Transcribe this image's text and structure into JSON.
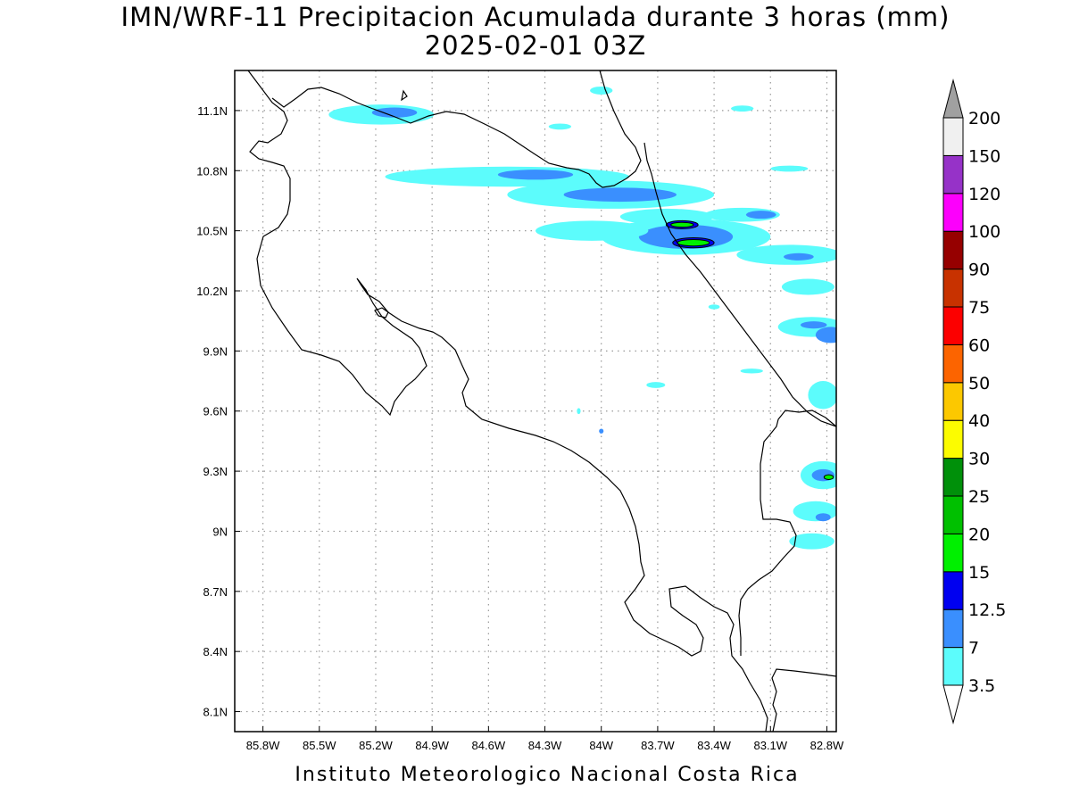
{
  "title": {
    "line1": "IMN/WRF-11 Precipitacion Acumulada durante 3 horas (mm)",
    "line2": "2025-02-01 03Z"
  },
  "footer": "Instituto Meteorologico Nacional Costa Rica",
  "map": {
    "lon_range": [
      -85.95,
      -82.75
    ],
    "lat_range": [
      8.0,
      11.3
    ],
    "lat_ticks": [
      {
        "value": 11.1,
        "label": "11.1N"
      },
      {
        "value": 10.8,
        "label": "10.8N"
      },
      {
        "value": 10.5,
        "label": "10.5N"
      },
      {
        "value": 10.2,
        "label": "10.2N"
      },
      {
        "value": 9.9,
        "label": "9.9N"
      },
      {
        "value": 9.6,
        "label": "9.6N"
      },
      {
        "value": 9.3,
        "label": "9.3N"
      },
      {
        "value": 9.0,
        "label": "9N"
      },
      {
        "value": 8.7,
        "label": "8.7N"
      },
      {
        "value": 8.4,
        "label": "8.4N"
      },
      {
        "value": 8.1,
        "label": "8.1N"
      }
    ],
    "lon_ticks": [
      {
        "value": -85.8,
        "label": "85.8W"
      },
      {
        "value": -85.5,
        "label": "85.5W"
      },
      {
        "value": -85.2,
        "label": "85.2W"
      },
      {
        "value": -84.9,
        "label": "84.9W"
      },
      {
        "value": -84.6,
        "label": "84.6W"
      },
      {
        "value": -84.3,
        "label": "84.3W"
      },
      {
        "value": -84.0,
        "label": "84W"
      },
      {
        "value": -83.7,
        "label": "83.7W"
      },
      {
        "value": -83.4,
        "label": "83.4W"
      },
      {
        "value": -83.1,
        "label": "83.1W"
      },
      {
        "value": -82.8,
        "label": "82.8W"
      }
    ]
  },
  "colorbar": {
    "levels": [
      {
        "label": "3.5",
        "color": "#5cfcfc"
      },
      {
        "label": "7",
        "color": "#3a8ffe"
      },
      {
        "label": "12.5",
        "color": "#0000f0"
      },
      {
        "label": "15",
        "color": "#00f000"
      },
      {
        "label": "20",
        "color": "#00c000"
      },
      {
        "label": "25",
        "color": "#00900a"
      },
      {
        "label": "30",
        "color": "#fcfc00"
      },
      {
        "label": "40",
        "color": "#fcc800"
      },
      {
        "label": "50",
        "color": "#fc6400"
      },
      {
        "label": "60",
        "color": "#fc0000"
      },
      {
        "label": "75",
        "color": "#c83200"
      },
      {
        "label": "90",
        "color": "#960000"
      },
      {
        "label": "100",
        "color": "#fc00fc"
      },
      {
        "label": "120",
        "color": "#9632c8"
      },
      {
        "label": "150",
        "color": "#f0f0f0"
      },
      {
        "label": "200",
        "color": "#a0a0a0"
      }
    ]
  },
  "precip_areas": [
    {
      "lon": -85.17,
      "lat": 11.08,
      "rx": 0.28,
      "ry": 0.05,
      "level": 0
    },
    {
      "lon": -85.1,
      "lat": 11.09,
      "rx": 0.12,
      "ry": 0.025,
      "level": 1
    },
    {
      "lon": -84.0,
      "lat": 11.2,
      "rx": 0.06,
      "ry": 0.02,
      "level": 0
    },
    {
      "lon": -84.5,
      "lat": 10.77,
      "rx": 0.65,
      "ry": 0.05,
      "level": 0
    },
    {
      "lon": -84.35,
      "lat": 10.78,
      "rx": 0.2,
      "ry": 0.025,
      "level": 1
    },
    {
      "lon": -83.95,
      "lat": 10.68,
      "rx": 0.55,
      "ry": 0.07,
      "level": 0
    },
    {
      "lon": -83.9,
      "lat": 10.68,
      "rx": 0.3,
      "ry": 0.035,
      "level": 1
    },
    {
      "lon": -83.65,
      "lat": 10.57,
      "rx": 0.25,
      "ry": 0.04,
      "level": 0
    },
    {
      "lon": -83.55,
      "lat": 10.47,
      "rx": 0.45,
      "ry": 0.09,
      "level": 0
    },
    {
      "lon": -83.55,
      "lat": 10.47,
      "rx": 0.25,
      "ry": 0.06,
      "level": 1
    },
    {
      "lon": -83.57,
      "lat": 10.53,
      "rx": 0.085,
      "ry": 0.02,
      "level": 2
    },
    {
      "lon": -83.57,
      "lat": 10.53,
      "rx": 0.06,
      "ry": 0.012,
      "level": 3
    },
    {
      "lon": -83.51,
      "lat": 10.44,
      "rx": 0.11,
      "ry": 0.025,
      "level": 2
    },
    {
      "lon": -83.51,
      "lat": 10.44,
      "rx": 0.085,
      "ry": 0.016,
      "level": 3
    },
    {
      "lon": -84.05,
      "lat": 10.5,
      "rx": 0.3,
      "ry": 0.05,
      "level": 0
    },
    {
      "lon": -83.25,
      "lat": 10.58,
      "rx": 0.2,
      "ry": 0.035,
      "level": 0
    },
    {
      "lon": -83.15,
      "lat": 10.58,
      "rx": 0.08,
      "ry": 0.02,
      "level": 1
    },
    {
      "lon": -83.0,
      "lat": 10.38,
      "rx": 0.28,
      "ry": 0.05,
      "level": 0
    },
    {
      "lon": -82.95,
      "lat": 10.37,
      "rx": 0.08,
      "ry": 0.018,
      "level": 1
    },
    {
      "lon": -82.9,
      "lat": 10.22,
      "rx": 0.14,
      "ry": 0.04,
      "level": 0
    },
    {
      "lon": -82.88,
      "lat": 10.02,
      "rx": 0.18,
      "ry": 0.05,
      "level": 0
    },
    {
      "lon": -82.87,
      "lat": 10.03,
      "rx": 0.07,
      "ry": 0.018,
      "level": 1
    },
    {
      "lon": -82.78,
      "lat": 9.98,
      "rx": 0.08,
      "ry": 0.04,
      "level": 1
    },
    {
      "lon": -82.82,
      "lat": 9.68,
      "rx": 0.08,
      "ry": 0.07,
      "level": 0
    },
    {
      "lon": -82.82,
      "lat": 9.28,
      "rx": 0.12,
      "ry": 0.07,
      "level": 0
    },
    {
      "lon": -82.82,
      "lat": 9.28,
      "rx": 0.06,
      "ry": 0.03,
      "level": 1
    },
    {
      "lon": -82.79,
      "lat": 9.27,
      "rx": 0.025,
      "ry": 0.012,
      "level": 3
    },
    {
      "lon": -82.86,
      "lat": 9.1,
      "rx": 0.12,
      "ry": 0.05,
      "level": 0
    },
    {
      "lon": -82.82,
      "lat": 9.07,
      "rx": 0.04,
      "ry": 0.02,
      "level": 1
    },
    {
      "lon": -82.88,
      "lat": 8.95,
      "rx": 0.12,
      "ry": 0.04,
      "level": 0
    },
    {
      "lon": -84.0,
      "lat": 9.5,
      "rx": 0.012,
      "ry": 0.012,
      "level": 1
    },
    {
      "lon": -84.12,
      "lat": 9.6,
      "rx": 0.01,
      "ry": 0.015,
      "level": 0
    },
    {
      "lon": -83.71,
      "lat": 9.73,
      "rx": 0.05,
      "ry": 0.015,
      "level": 0
    },
    {
      "lon": -83.25,
      "lat": 11.11,
      "rx": 0.06,
      "ry": 0.015,
      "level": 0
    },
    {
      "lon": -83.0,
      "lat": 10.81,
      "rx": 0.1,
      "ry": 0.015,
      "level": 0
    },
    {
      "lon": -84.22,
      "lat": 11.02,
      "rx": 0.06,
      "ry": 0.015,
      "level": 0
    },
    {
      "lon": -83.2,
      "lat": 9.8,
      "rx": 0.06,
      "ry": 0.012,
      "level": 0
    },
    {
      "lon": -83.4,
      "lat": 10.12,
      "rx": 0.03,
      "ry": 0.012,
      "level": 0
    }
  ]
}
